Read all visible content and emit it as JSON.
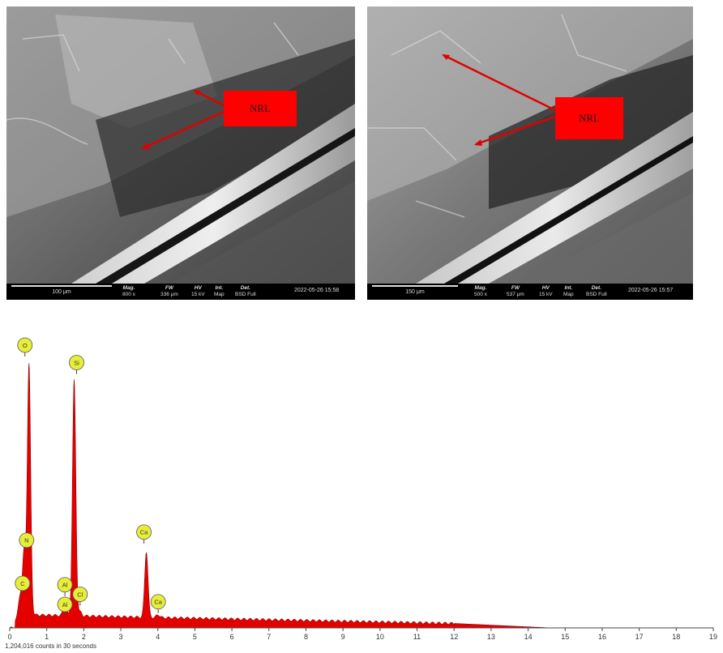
{
  "sem_images": [
    {
      "nrl_label": "NRL",
      "scale": "100 μm",
      "meta": [
        {
          "h": "Mag.",
          "v": "800 x"
        },
        {
          "h": "FW",
          "v": "336 μm"
        },
        {
          "h": "HV",
          "v": "15 kV"
        },
        {
          "h": "Int.",
          "v": "Map"
        },
        {
          "h": "Det.",
          "v": "BSD Full"
        }
      ],
      "timestamp": "2022-05-26 15:58"
    },
    {
      "nrl_label": "NRL",
      "scale": "150 μm",
      "meta": [
        {
          "h": "Mag.",
          "v": "500 x"
        },
        {
          "h": "FW",
          "v": "537 μm"
        },
        {
          "h": "HV",
          "v": "15 kV"
        },
        {
          "h": "Int.",
          "v": "Map"
        },
        {
          "h": "Det.",
          "v": "BSD Full"
        }
      ],
      "timestamp": "2022-05-26 15:57"
    }
  ],
  "chart_data": {
    "type": "area",
    "title": "",
    "xlabel": "",
    "ylabel": "",
    "xlim": [
      0,
      19
    ],
    "xticks": [
      "0",
      "1",
      "2",
      "3",
      "4",
      "5",
      "6",
      "7",
      "8",
      "9",
      "10",
      "11",
      "12",
      "13",
      "14",
      "15",
      "16",
      "17",
      "18",
      "19"
    ],
    "counts_note": "1,204,016 counts in 30 seconds",
    "fill_color": "#e50000",
    "label_color": "#e6ee3a",
    "peaks": [
      {
        "element": "C",
        "energy_kev": 0.28,
        "rel_height": 0.12
      },
      {
        "element": "N",
        "energy_kev": 0.39,
        "rel_height": 0.29
      },
      {
        "element": "O",
        "energy_kev": 0.52,
        "rel_height": 1.0
      },
      {
        "element": "Al",
        "energy_kev": 1.49,
        "rel_height": 0.09
      },
      {
        "element": "Al",
        "energy_kev": 1.49,
        "rel_height": 0.04
      },
      {
        "element": "Si",
        "energy_kev": 1.74,
        "rel_height": 0.94
      },
      {
        "element": "Cl",
        "energy_kev": 1.9,
        "rel_height": 0.06
      },
      {
        "element": "Ca",
        "energy_kev": 3.69,
        "rel_height": 0.29
      },
      {
        "element": "Ca",
        "energy_kev": 4.01,
        "rel_height": 0.05
      }
    ],
    "label_elements": [
      "O",
      "Si",
      "Ca",
      "N",
      "C",
      "Al",
      "Al",
      "Cl",
      "Ca"
    ]
  }
}
